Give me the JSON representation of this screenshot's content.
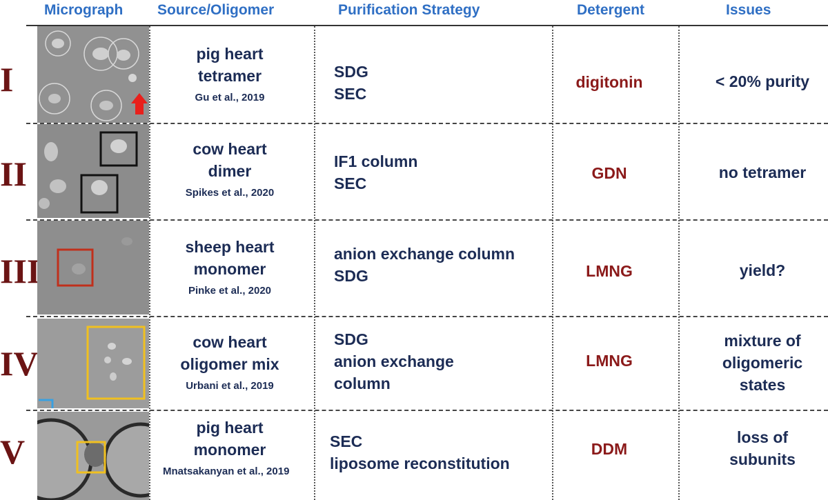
{
  "headers": {
    "micrograph": "Micrograph",
    "source": "Source/Oligomer",
    "purification": "Purification Strategy",
    "detergent": "Detergent",
    "issues": "Issues"
  },
  "rows": [
    {
      "roman": "I",
      "source_lines": [
        "pig heart",
        "tetramer"
      ],
      "citation": "Gu et al., 2019",
      "purification_lines": [
        "SDG",
        "SEC"
      ],
      "detergent": "digitonin",
      "issues_lines": [
        "< 20% purity"
      ]
    },
    {
      "roman": "II",
      "source_lines": [
        "cow heart",
        "dimer"
      ],
      "citation": "Spikes et al., 2020",
      "purification_lines": [
        "IF1 column",
        "SEC"
      ],
      "detergent": "GDN",
      "issues_lines": [
        "no tetramer"
      ]
    },
    {
      "roman": "III",
      "source_lines": [
        "sheep heart",
        "monomer"
      ],
      "citation": "Pinke et al., 2020",
      "purification_lines": [
        "anion exchange column",
        "SDG"
      ],
      "detergent": "LMNG",
      "issues_lines": [
        "yield?"
      ]
    },
    {
      "roman": "IV",
      "source_lines": [
        "cow heart",
        "oligomer mix"
      ],
      "citation": "Urbani et al., 2019",
      "purification_lines": [
        "SDG",
        "anion exchange",
        "column"
      ],
      "detergent": "LMNG",
      "issues_lines": [
        "mixture of",
        "oligomeric",
        "states"
      ]
    },
    {
      "roman": "V",
      "source_lines": [
        "pig heart",
        "monomer"
      ],
      "citation": "Mnatsakanyan et al., 2019",
      "purification_lines": [
        "SEC",
        "liposome reconstitution"
      ],
      "detergent": "DDM",
      "issues_lines": [
        "loss of",
        "subunits"
      ]
    }
  ],
  "colors": {
    "header_text": "#2f6fc4",
    "roman_numeral": "#6b1414",
    "body_text": "#1c2c55",
    "detergent_text": "#8b1a1a",
    "highlight_red_arrow": "#e8201c",
    "box_black": "#111111",
    "box_red": "#c0301c",
    "box_yellow": "#f0c020",
    "box_cyan": "#3aa0e0"
  }
}
